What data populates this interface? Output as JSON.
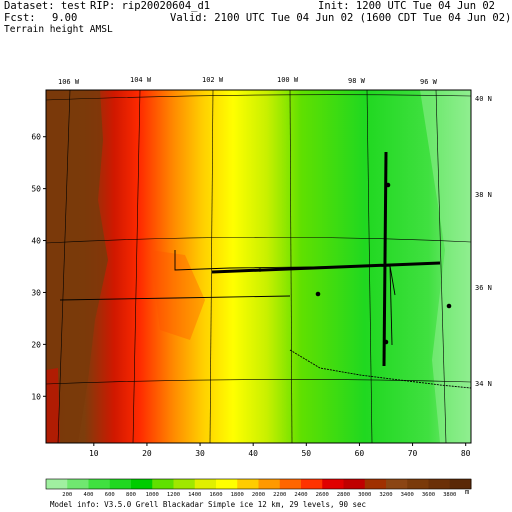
{
  "header": {
    "dataset_label": "Dataset: test",
    "rip_label": "RIP: rip20020604_d1",
    "init_label": "Init: 1200 UTC Tue 04 Jun 02",
    "fcst_label": "Fcst:",
    "fcst_value": "9.00",
    "valid_label": "Valid: 2100 UTC Tue 04 Jun 02 (1600 CDT Tue 04 Jun 02)",
    "field_title": "Terrain height AMSL"
  },
  "map": {
    "longitude_labels": [
      "106 W",
      "104 W",
      "102 W",
      "100 W",
      "98 W",
      "96 W"
    ],
    "latitude_labels": [
      "40 N",
      "38 N",
      "36 N",
      "34 N"
    ],
    "grid_x_ticks": [
      10,
      20,
      30,
      40,
      50,
      60,
      70,
      80
    ],
    "grid_y_ticks": [
      10,
      20,
      30,
      40,
      50,
      60
    ],
    "x_range": [
      1,
      81
    ],
    "y_range": [
      1,
      69
    ],
    "colors": {
      "low": "#90ee90",
      "green": "#00e000",
      "yellow": "#ffff00",
      "orange": "#ff9900",
      "red": "#e00000",
      "high": "#7a3a0a"
    }
  },
  "colorbar": {
    "values": [
      "200",
      "400",
      "600",
      "800",
      "1000",
      "1200",
      "1400",
      "1600",
      "1800",
      "2000",
      "2200",
      "2400",
      "2600",
      "2800",
      "3000",
      "3200",
      "3400",
      "3600",
      "3800"
    ],
    "unit": "m",
    "colors": [
      "#a0f0a0",
      "#70e870",
      "#40e040",
      "#20d820",
      "#00cc00",
      "#60e000",
      "#a0e800",
      "#e0f000",
      "#ffff00",
      "#ffcc00",
      "#ff9900",
      "#ff6600",
      "#ff3300",
      "#e00000",
      "#c00000",
      "#a03000",
      "#8b4513",
      "#7a3a0a",
      "#6b3008",
      "#5a2806"
    ]
  },
  "footer": {
    "model_info": "Model info: V3.5.0  Grell    Blackadar  Simple ice   12 km,  29 levels,   90 sec"
  }
}
